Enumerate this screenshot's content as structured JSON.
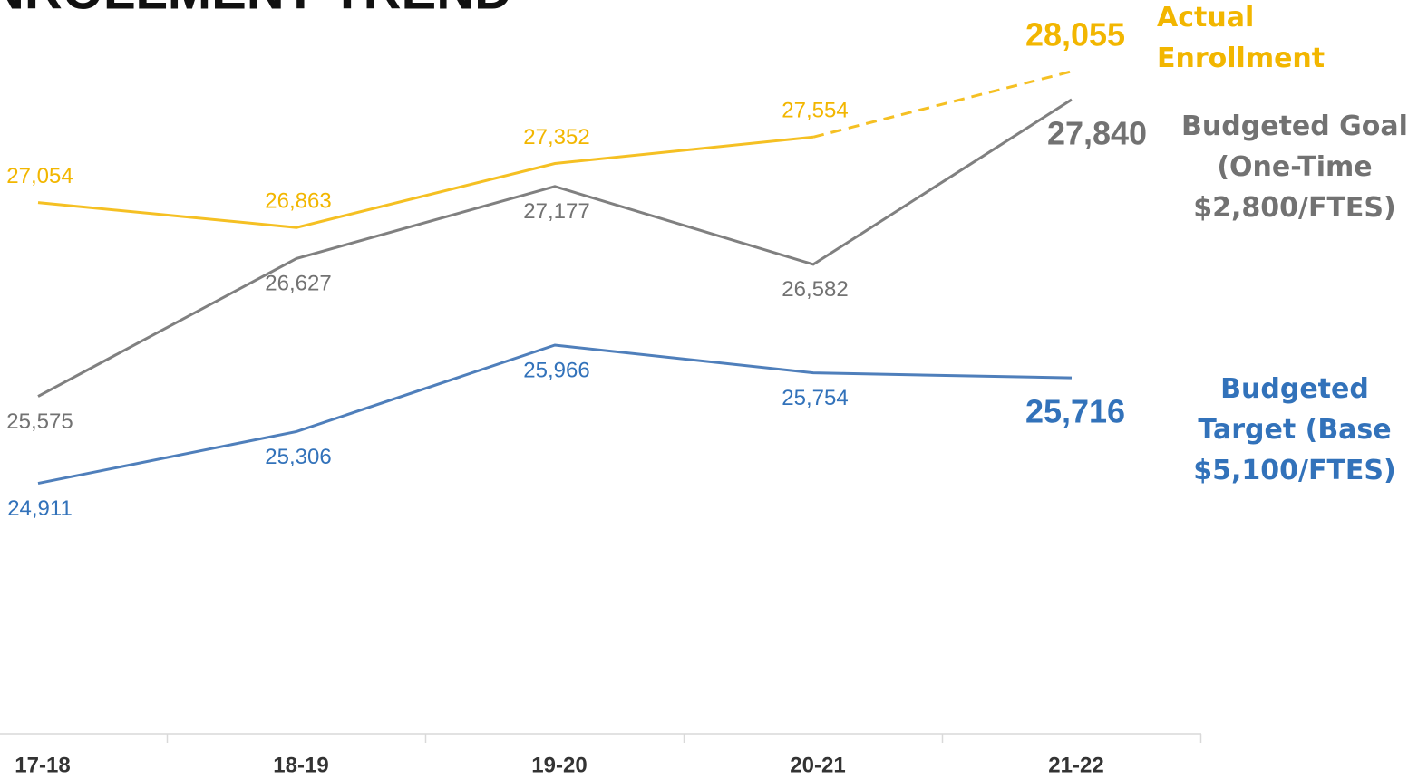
{
  "chart_data": {
    "type": "line",
    "title": "ENROLLMENT TREND",
    "categories": [
      "17-18",
      "18-19",
      "19-20",
      "20-21",
      "21-22"
    ],
    "ylim": [
      23000,
      28600
    ],
    "series": [
      {
        "name": "Actual Enrollment",
        "color": "#f5c023",
        "label_color": "#f2b600",
        "dash_last_segment": true,
        "label_side": "above",
        "values": [
          27054,
          26863,
          27352,
          27554,
          28055
        ],
        "value_labels": [
          "27,054",
          "26,863",
          "27,352",
          "27,554",
          "28,055"
        ]
      },
      {
        "name": "Budgeted Goal (One-Time $2,800/FTES)",
        "color": "#808080",
        "label_color": "#727272",
        "dash_last_segment": false,
        "label_side": "below",
        "values": [
          25575,
          26627,
          27177,
          26582,
          27840
        ],
        "value_labels": [
          "25,575",
          "26,627",
          "27,177",
          "26,582",
          "27,840"
        ]
      },
      {
        "name": "Budgeted Target (Base $5,100/FTES)",
        "color": "#4f7fbb",
        "label_color": "#3272ba",
        "dash_last_segment": false,
        "label_side": "below",
        "values": [
          24911,
          25306,
          25966,
          25754,
          25716
        ],
        "value_labels": [
          "24,911",
          "25,306",
          "25,966",
          "25,754",
          "25,716"
        ]
      }
    ]
  }
}
